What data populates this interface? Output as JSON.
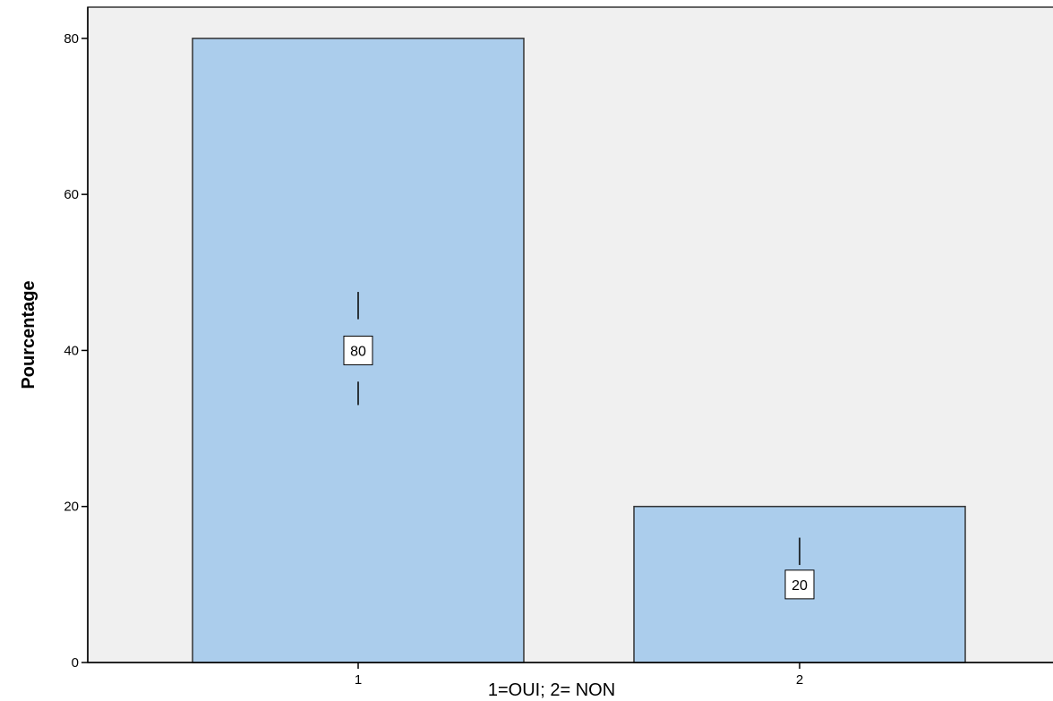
{
  "chart_data": {
    "type": "bar",
    "categories": [
      "1",
      "2"
    ],
    "values": [
      80,
      20
    ],
    "data_labels": [
      "80",
      "20"
    ],
    "title": "",
    "xlabel": "1=OUI; 2= NON",
    "ylabel": "Pourcentage",
    "ylim": [
      0,
      84
    ],
    "yticks": [
      0,
      20,
      40,
      60,
      80
    ],
    "ytick_labels": [
      "0",
      "20",
      "40",
      "60",
      "80"
    ],
    "grid": false,
    "legend": "none",
    "error_bars": [
      {
        "category": "1",
        "center": 40,
        "upper": [
          44,
          47.5
        ],
        "lower": [
          36,
          33
        ]
      },
      {
        "category": "2",
        "center": 10,
        "upper": [
          12.5,
          16
        ],
        "lower": null
      }
    ],
    "colors": {
      "bar_fill": "#abcdec",
      "bar_stroke": "#333333",
      "plot_background": "#f0f0f0",
      "axis": "#000000",
      "label_box": "#ffffff"
    }
  }
}
